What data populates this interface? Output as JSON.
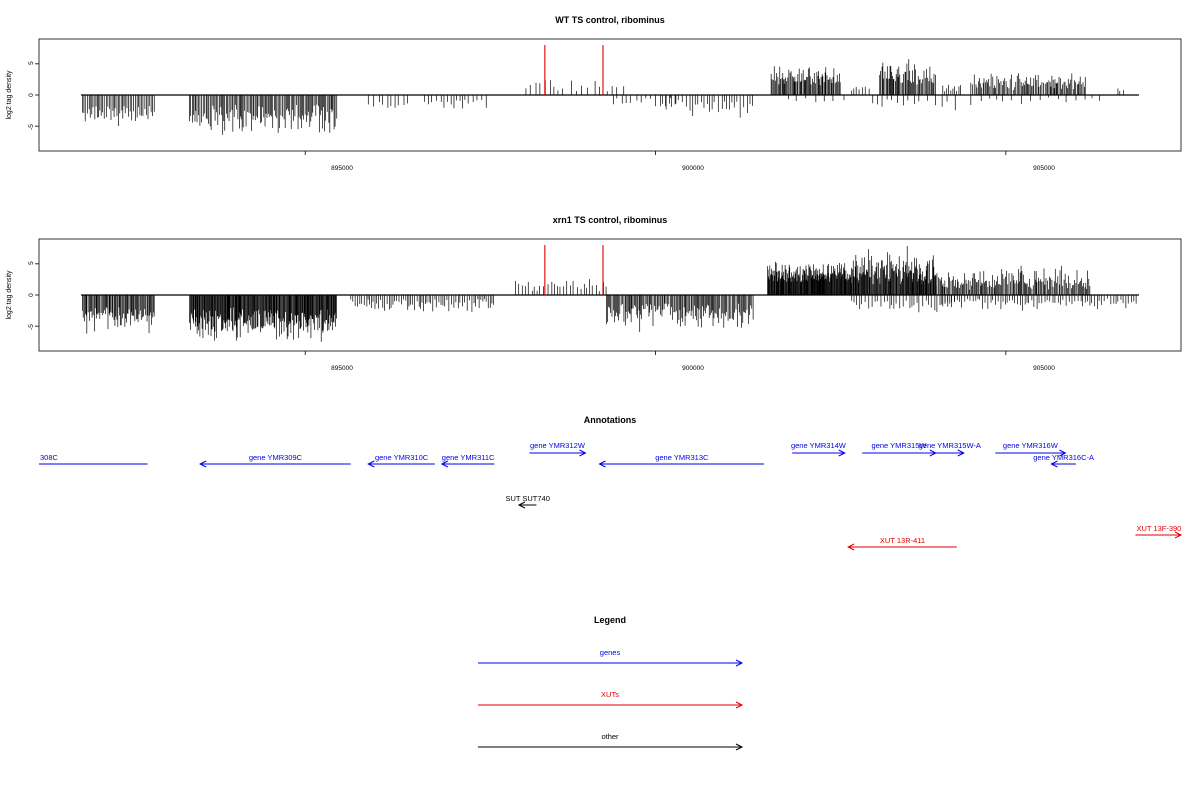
{
  "chart_data": [
    {
      "type": "bar",
      "title": "WT TS control, ribominus",
      "xlabel": "",
      "ylabel": "log2 tag density",
      "xlim": [
        891200,
        907500
      ],
      "ylim": [
        -8.5,
        8.5
      ],
      "x_ticks": [
        {
          "value": 895000,
          "label": "895000"
        },
        {
          "value": 900000,
          "label": "900000"
        },
        {
          "value": 905000,
          "label": "905000"
        }
      ],
      "y_ticks": [
        {
          "value": -5,
          "label": "-5"
        },
        {
          "value": 0,
          "label": "0"
        },
        {
          "value": 5,
          "label": "5"
        }
      ],
      "baseline": {
        "x": [
          891800,
          906900
        ],
        "y": 0
      },
      "highlights": [
        {
          "x": 898420,
          "y": 8.0,
          "color": "#e00000"
        },
        {
          "x": 899250,
          "y": 8.0,
          "color": "#e00000"
        }
      ],
      "segments": [
        {
          "x0": 891820,
          "x1": 892850,
          "sign": -1,
          "min": 1.5,
          "max": 5.8,
          "step": 22
        },
        {
          "x0": 893350,
          "x1": 895450,
          "sign": -1,
          "min": 1.5,
          "max": 6.8,
          "step": 18
        },
        {
          "x0": 895900,
          "x1": 896500,
          "sign": -1,
          "min": 0.8,
          "max": 2.6,
          "step": 60
        },
        {
          "x0": 896700,
          "x1": 897600,
          "sign": -1,
          "min": 0.6,
          "max": 2.6,
          "step": 55
        },
        {
          "x0": 898150,
          "x1": 898700,
          "sign": 1,
          "min": 0.6,
          "max": 3.2,
          "step": 60
        },
        {
          "x0": 898800,
          "x1": 899600,
          "sign": 1,
          "min": 0.5,
          "max": 2.8,
          "step": 80
        },
        {
          "x0": 899400,
          "x1": 900300,
          "sign": -1,
          "min": 0.4,
          "max": 2.0,
          "step": 70
        },
        {
          "x0": 900100,
          "x1": 901400,
          "sign": -1,
          "min": 0.5,
          "max": 3.8,
          "step": 45
        },
        {
          "x0": 901650,
          "x1": 902650,
          "sign": 1,
          "min": 1.5,
          "max": 4.8,
          "step": 14
        },
        {
          "x0": 901900,
          "x1": 902700,
          "sign": -1,
          "min": 0.3,
          "max": 1.5,
          "step": 120
        },
        {
          "x0": 902800,
          "x1": 903100,
          "sign": 1,
          "min": 0.5,
          "max": 2.5,
          "step": 40
        },
        {
          "x0": 903200,
          "x1": 904000,
          "sign": 1,
          "min": 1.2,
          "max": 6.0,
          "step": 16
        },
        {
          "x0": 903100,
          "x1": 904300,
          "sign": -1,
          "min": 0.5,
          "max": 3.0,
          "step": 90
        },
        {
          "x0": 904100,
          "x1": 904400,
          "sign": 1,
          "min": 0.5,
          "max": 2.5,
          "step": 40
        },
        {
          "x0": 904500,
          "x1": 906150,
          "sign": 1,
          "min": 0.8,
          "max": 3.8,
          "step": 18
        },
        {
          "x0": 904500,
          "x1": 906400,
          "sign": -1,
          "min": 0.3,
          "max": 1.8,
          "step": 110
        },
        {
          "x0": 906600,
          "x1": 906700,
          "sign": 1,
          "min": 0.5,
          "max": 1.5,
          "step": 40
        }
      ]
    },
    {
      "type": "bar",
      "title": "xrn1 TS control, ribominus",
      "xlabel": "",
      "ylabel": "log2 tag density",
      "xlim": [
        891200,
        907500
      ],
      "ylim": [
        -8.5,
        8.5
      ],
      "x_ticks": [
        {
          "value": 895000,
          "label": "895000"
        },
        {
          "value": 900000,
          "label": "900000"
        },
        {
          "value": 905000,
          "label": "905000"
        }
      ],
      "y_ticks": [
        {
          "value": -5,
          "label": "-5"
        },
        {
          "value": 0,
          "label": "0"
        },
        {
          "value": 5,
          "label": "5"
        }
      ],
      "baseline": {
        "x": [
          891800,
          906900
        ],
        "y": 0
      },
      "highlights": [
        {
          "x": 898420,
          "y": 8.0,
          "color": "#e00000"
        },
        {
          "x": 899250,
          "y": 8.0,
          "color": "#e00000"
        }
      ],
      "segments": [
        {
          "x0": 891820,
          "x1": 892850,
          "sign": -1,
          "min": 1.8,
          "max": 6.8,
          "step": 14
        },
        {
          "x0": 893350,
          "x1": 895450,
          "sign": -1,
          "min": 2.0,
          "max": 7.8,
          "step": 10
        },
        {
          "x0": 895650,
          "x1": 897700,
          "sign": -1,
          "min": 0.6,
          "max": 3.0,
          "step": 28
        },
        {
          "x0": 898000,
          "x1": 899300,
          "sign": 1,
          "min": 0.6,
          "max": 3.0,
          "step": 45
        },
        {
          "x0": 899300,
          "x1": 901400,
          "sign": -1,
          "min": 1.2,
          "max": 6.0,
          "step": 16
        },
        {
          "x0": 901600,
          "x1": 902800,
          "sign": 1,
          "min": 2.0,
          "max": 5.5,
          "step": 8
        },
        {
          "x0": 902800,
          "x1": 904000,
          "sign": 1,
          "min": 1.5,
          "max": 8.0,
          "step": 10
        },
        {
          "x0": 902800,
          "x1": 904300,
          "sign": -1,
          "min": 0.8,
          "max": 3.0,
          "step": 40
        },
        {
          "x0": 904000,
          "x1": 906200,
          "sign": 1,
          "min": 0.8,
          "max": 5.0,
          "step": 16
        },
        {
          "x0": 904100,
          "x1": 906900,
          "sign": -1,
          "min": 0.5,
          "max": 2.6,
          "step": 35
        }
      ]
    }
  ],
  "annotations": {
    "title": "Annotations",
    "xlim": [
      891200,
      907500
    ],
    "features": [
      {
        "label": "308C",
        "kind": "gene",
        "x0": 891200,
        "x1": 892750,
        "row": 1,
        "dir": "none",
        "color": "#0000ee",
        "label_anchor": "start"
      },
      {
        "label": "gene YMR309C",
        "kind": "gene",
        "x0": 893500,
        "x1": 895650,
        "row": 1,
        "dir": "left",
        "color": "#0000ee",
        "label_anchor": "middle"
      },
      {
        "label": "gene YMR310C",
        "kind": "gene",
        "x0": 895900,
        "x1": 896850,
        "row": 1,
        "dir": "left",
        "color": "#0000ee",
        "label_anchor": "middle"
      },
      {
        "label": "gene YMR311C",
        "kind": "gene",
        "x0": 896950,
        "x1": 897700,
        "row": 1,
        "dir": "left",
        "color": "#0000ee",
        "label_anchor": "middle"
      },
      {
        "label": "gene YMR312W",
        "kind": "gene",
        "x0": 898200,
        "x1": 899000,
        "row": 0,
        "dir": "right",
        "color": "#0000ee",
        "label_anchor": "middle"
      },
      {
        "label": "gene YMR313C",
        "kind": "gene",
        "x0": 899200,
        "x1": 901550,
        "row": 1,
        "dir": "left",
        "color": "#0000ee",
        "label_anchor": "middle"
      },
      {
        "label": "gene YMR314W",
        "kind": "gene",
        "x0": 901950,
        "x1": 902700,
        "row": 0,
        "dir": "right",
        "color": "#0000ee",
        "label_anchor": "middle"
      },
      {
        "label": "gene YMR315W",
        "kind": "gene",
        "x0": 902950,
        "x1": 904000,
        "row": 0,
        "dir": "right",
        "color": "#0000ee",
        "label_anchor": "middle"
      },
      {
        "label": "gene YMR315W-A",
        "kind": "gene",
        "x0": 904000,
        "x1": 904400,
        "row": 0,
        "dir": "right",
        "color": "#0000ee",
        "label_anchor": "middle"
      },
      {
        "label": "gene YMR316W",
        "kind": "gene",
        "x0": 904850,
        "x1": 905850,
        "row": 0,
        "dir": "right",
        "color": "#0000ee",
        "label_anchor": "middle"
      },
      {
        "label": "gene YMR316C-A",
        "kind": "gene",
        "x0": 905650,
        "x1": 906000,
        "row": 1,
        "dir": "left",
        "color": "#0000ee",
        "label_anchor": "middle"
      },
      {
        "label": "SUT SUT740",
        "kind": "other",
        "x0": 898050,
        "x1": 898300,
        "row": 3,
        "dir": "left",
        "color": "#000000",
        "label_anchor": "middle"
      },
      {
        "label": "XUT 13R-411",
        "kind": "xut",
        "x0": 902750,
        "x1": 904300,
        "row": 5,
        "dir": "left",
        "color": "#e00000",
        "label_anchor": "middle"
      },
      {
        "label": "XUT 13F-390",
        "kind": "xut",
        "x0": 906850,
        "x1": 907500,
        "row": 4,
        "dir": "right",
        "color": "#e00000",
        "label_anchor": "start"
      }
    ]
  },
  "legend": {
    "title": "Legend",
    "items": [
      {
        "label": "genes",
        "color": "#0000ee"
      },
      {
        "label": "XUTs",
        "color": "#e00000"
      },
      {
        "label": "other",
        "color": "#000000"
      }
    ]
  }
}
